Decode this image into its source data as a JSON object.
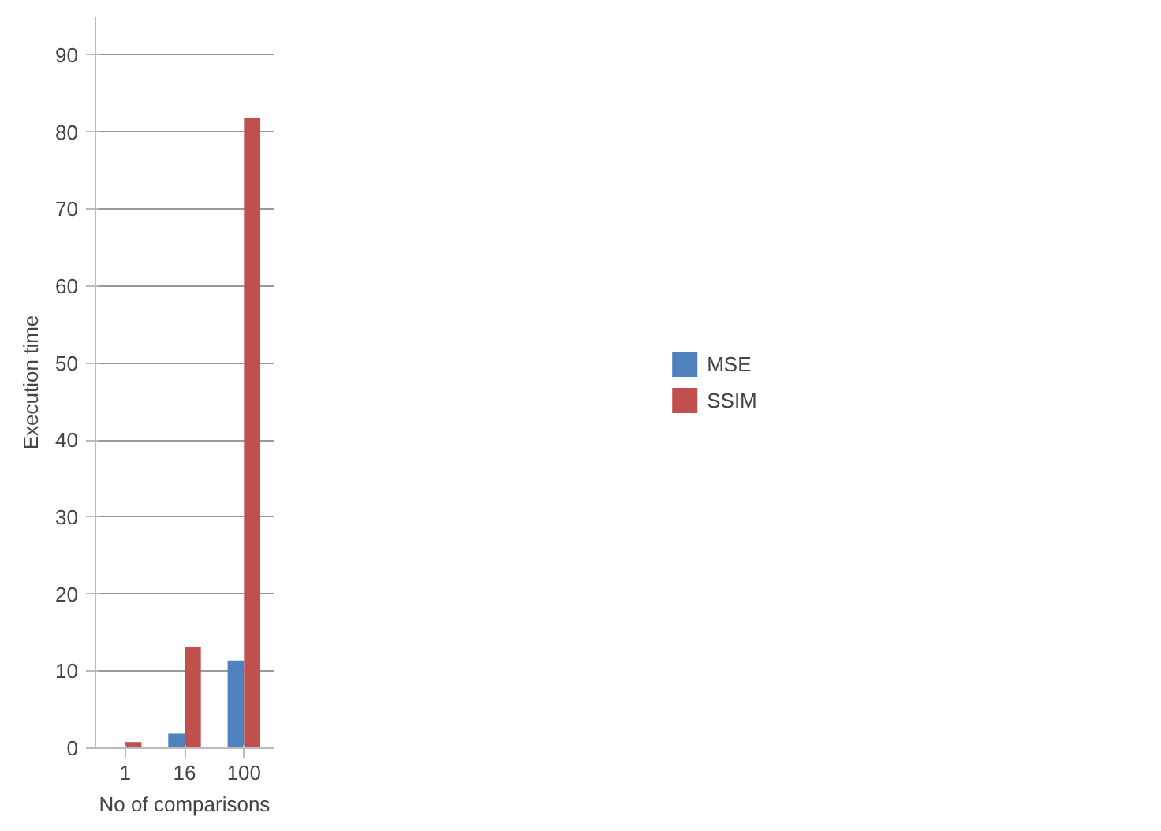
{
  "chart_data": {
    "type": "bar",
    "xlabel": "No of comparisons",
    "ylabel": "Execution time",
    "categories": [
      "1",
      "16",
      "100"
    ],
    "series": [
      {
        "name": "MSE",
        "color": "#4f81bd",
        "values": [
          0,
          1.9,
          11.4
        ]
      },
      {
        "name": "SSIM",
        "color": "#c0504d",
        "values": [
          0.8,
          13.1,
          81.8
        ]
      }
    ],
    "ylim": [
      0,
      95
    ],
    "yticks": [
      0,
      10,
      20,
      30,
      40,
      50,
      60,
      70,
      80,
      90
    ],
    "grid": "y",
    "legend": "right"
  }
}
